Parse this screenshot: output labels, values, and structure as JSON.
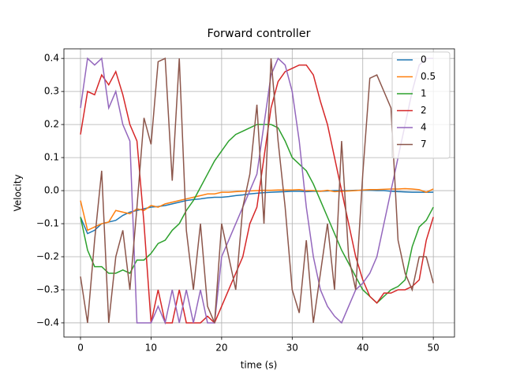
{
  "chart_data": {
    "type": "line",
    "title": "Forward controller",
    "x_label": "time (s)",
    "y_label": "Velocity",
    "x": [
      0,
      1,
      2,
      3,
      4,
      5,
      6,
      7,
      8,
      9,
      10,
      11,
      12,
      13,
      14,
      15,
      16,
      17,
      18,
      19,
      20,
      21,
      22,
      23,
      24,
      25,
      26,
      27,
      28,
      29,
      30,
      31,
      32,
      33,
      34,
      35,
      36,
      37,
      38,
      39,
      40,
      41,
      42,
      43,
      44,
      45,
      46,
      47,
      48,
      49,
      50
    ],
    "series": [
      {
        "name": "0",
        "color": "#1f77b4",
        "values": [
          -0.08,
          -0.13,
          -0.12,
          -0.1,
          -0.095,
          -0.09,
          -0.075,
          -0.065,
          -0.06,
          -0.055,
          -0.05,
          -0.048,
          -0.045,
          -0.04,
          -0.035,
          -0.03,
          -0.027,
          -0.025,
          -0.022,
          -0.02,
          -0.02,
          -0.018,
          -0.015,
          -0.013,
          -0.01,
          -0.008,
          -0.006,
          -0.005,
          -0.004,
          -0.003,
          -0.002,
          -0.002,
          -0.003,
          -0.002,
          -0.002,
          -0.001,
          0,
          0,
          0,
          0.001,
          0.001,
          0.001,
          0,
          0,
          -0.002,
          -0.003,
          -0.004,
          -0.005,
          -0.005,
          -0.005,
          -0.005
        ]
      },
      {
        "name": "0.5",
        "color": "#ff7f0e",
        "values": [
          -0.03,
          -0.12,
          -0.11,
          -0.1,
          -0.095,
          -0.06,
          -0.065,
          -0.07,
          -0.055,
          -0.06,
          -0.045,
          -0.05,
          -0.04,
          -0.035,
          -0.03,
          -0.025,
          -0.02,
          -0.015,
          -0.01,
          -0.01,
          -0.005,
          -0.005,
          -0.003,
          -0.002,
          -0.001,
          0,
          0.001,
          0.001,
          0.002,
          0.002,
          0.002,
          0.003,
          0,
          0,
          -0.002,
          0.001,
          -0.003,
          -0.002,
          -0.001,
          0,
          0.002,
          0.003,
          0.003,
          0.004,
          0.005,
          0.005,
          0.006,
          0.005,
          0.003,
          -0.005,
          0.005
        ]
      },
      {
        "name": "1",
        "color": "#2ca02c",
        "values": [
          -0.08,
          -0.18,
          -0.23,
          -0.23,
          -0.25,
          -0.25,
          -0.24,
          -0.25,
          -0.21,
          -0.21,
          -0.19,
          -0.16,
          -0.15,
          -0.12,
          -0.1,
          -0.06,
          -0.03,
          0.01,
          0.05,
          0.09,
          0.12,
          0.15,
          0.17,
          0.18,
          0.19,
          0.2,
          0.2,
          0.2,
          0.19,
          0.15,
          0.1,
          0.08,
          0.06,
          0.02,
          -0.03,
          -0.08,
          -0.13,
          -0.18,
          -0.22,
          -0.26,
          -0.3,
          -0.32,
          -0.34,
          -0.32,
          -0.3,
          -0.29,
          -0.27,
          -0.17,
          -0.11,
          -0.09,
          -0.05
        ]
      },
      {
        "name": "2",
        "color": "#d62728",
        "values": [
          0.17,
          0.3,
          0.29,
          0.35,
          0.32,
          0.36,
          0.29,
          0.2,
          0.15,
          -0.1,
          -0.4,
          -0.3,
          -0.4,
          -0.4,
          -0.3,
          -0.4,
          -0.4,
          -0.4,
          -0.38,
          -0.4,
          -0.35,
          -0.3,
          -0.25,
          -0.2,
          -0.1,
          -0.05,
          0.1,
          0.25,
          0.33,
          0.36,
          0.37,
          0.38,
          0.38,
          0.35,
          0.27,
          0.2,
          0.1,
          0.0,
          -0.1,
          -0.2,
          -0.27,
          -0.32,
          -0.34,
          -0.31,
          -0.31,
          -0.3,
          -0.3,
          -0.29,
          -0.27,
          -0.15,
          -0.08
        ]
      },
      {
        "name": "4",
        "color": "#9467bd",
        "values": [
          0.25,
          0.4,
          0.38,
          0.4,
          0.25,
          0.3,
          0.2,
          0.15,
          -0.4,
          -0.4,
          -0.4,
          -0.35,
          -0.4,
          -0.3,
          -0.4,
          -0.3,
          -0.4,
          -0.3,
          -0.4,
          -0.4,
          -0.2,
          -0.15,
          -0.1,
          -0.05,
          0.0,
          0.05,
          0.2,
          0.35,
          0.4,
          0.38,
          0.3,
          0.15,
          -0.05,
          -0.2,
          -0.3,
          -0.35,
          -0.38,
          -0.4,
          -0.35,
          -0.3,
          -0.28,
          -0.25,
          -0.2,
          -0.1,
          0.0,
          0.1,
          0.2,
          0.3,
          0.38,
          0.4,
          0.4
        ]
      },
      {
        "name": "7",
        "color": "#8c564b",
        "values": [
          -0.26,
          -0.4,
          -0.15,
          0.06,
          -0.4,
          -0.2,
          -0.12,
          -0.3,
          -0.05,
          0.22,
          0.14,
          0.39,
          0.4,
          0.03,
          0.4,
          -0.12,
          -0.3,
          -0.1,
          -0.35,
          -0.4,
          -0.1,
          -0.2,
          -0.3,
          -0.05,
          0.05,
          0.26,
          -0.1,
          0.4,
          0.15,
          -0.05,
          -0.3,
          -0.37,
          -0.15,
          -0.4,
          -0.25,
          -0.1,
          -0.3,
          0.15,
          -0.2,
          -0.3,
          0.05,
          0.34,
          0.35,
          0.3,
          0.25,
          -0.15,
          -0.25,
          -0.3,
          -0.2,
          -0.2,
          -0.28
        ]
      }
    ],
    "xlim": [
      -2.35,
      53
    ],
    "ylim": [
      -0.443,
      0.429
    ],
    "xticks": [
      0,
      10,
      20,
      30,
      40,
      50
    ],
    "yticks": [
      {
        "value": -0.4,
        "label": "−0.4"
      },
      {
        "value": -0.3,
        "label": "−0.3"
      },
      {
        "value": -0.2,
        "label": "−0.2"
      },
      {
        "value": -0.1,
        "label": "−0.1"
      },
      {
        "value": 0,
        "label": "0.0"
      },
      0.1,
      0.2,
      0.3,
      0.4
    ],
    "grid": true,
    "legend": "upper right"
  }
}
